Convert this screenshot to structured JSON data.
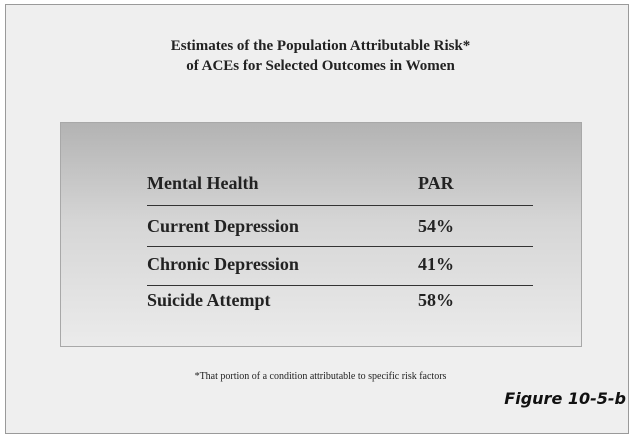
{
  "title": {
    "line1": "Estimates of the Population Attributable Risk*",
    "line2": "of ACEs for Selected Outcomes in Women"
  },
  "table": {
    "header": [
      "Mental Health",
      "PAR"
    ],
    "rows": [
      [
        "Current Depression",
        "54%"
      ],
      [
        "Chronic Depression",
        "41%"
      ],
      [
        "Suicide Attempt",
        "58%"
      ]
    ]
  },
  "footnote": "*That portion of a condition attributable to specific risk factors",
  "figure_label": "Figure 10-5-b"
}
